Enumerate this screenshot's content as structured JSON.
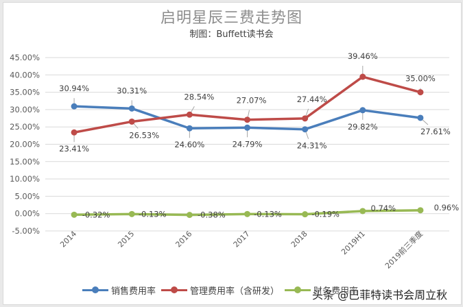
{
  "header": {
    "title": "启明星辰三费走势图",
    "subtitle": "制图：Buffett读书会"
  },
  "watermark": "头条 @巴菲特读书会周立秋",
  "chart_data": {
    "type": "line",
    "title": "启明星辰三费走势图",
    "subtitle": "制图：Buffett读书会",
    "categories": [
      "2014",
      "2015",
      "2016",
      "2017",
      "2018",
      "2019H1",
      "2019前三季度"
    ],
    "series": [
      {
        "name": "销售费用率",
        "color": "#4a7ebb",
        "values": [
          30.94,
          30.31,
          24.6,
          24.79,
          24.31,
          29.82,
          27.61
        ],
        "labels": [
          "30.94%",
          "30.31%",
          "24.60%",
          "24.79%",
          "24.31%",
          "29.82%",
          "27.61%"
        ]
      },
      {
        "name": "管理费用率（含研发）",
        "color": "#be4b48",
        "values": [
          23.41,
          26.53,
          28.54,
          27.07,
          27.44,
          39.46,
          35.0
        ],
        "labels": [
          "23.41%",
          "26.53%",
          "28.54%",
          "27.07%",
          "27.44%",
          "39.46%",
          "35.00%"
        ]
      },
      {
        "name": "财务费用率",
        "color": "#98b954",
        "values": [
          -0.32,
          -0.13,
          -0.38,
          -0.13,
          -0.19,
          0.74,
          0.96
        ],
        "labels": [
          "-0.32%",
          "-0.13%",
          "-0.38%",
          "-0.13%",
          "-0.19%",
          "0.74%",
          "0.96%"
        ]
      }
    ],
    "yticks": [
      "45.00%",
      "40.00%",
      "35.00%",
      "30.00%",
      "25.00%",
      "20.00%",
      "15.00%",
      "10.00%",
      "5.00%",
      "0.00%",
      "-5.00%"
    ],
    "ylim": [
      -5,
      45
    ],
    "xlabel": "",
    "ylabel": "",
    "grid": true,
    "legend_position": "bottom"
  },
  "legend": {
    "items": [
      {
        "label": "销售费用率",
        "color": "#4a7ebb"
      },
      {
        "label": "管理费用率（含研发）",
        "color": "#be4b48"
      },
      {
        "label": "财务费用率",
        "color": "#98b954"
      }
    ]
  }
}
